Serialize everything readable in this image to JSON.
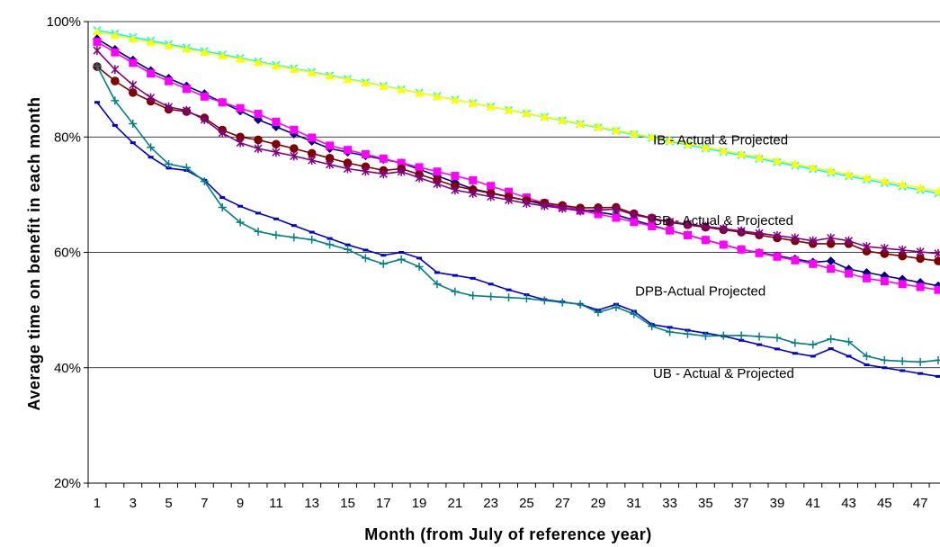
{
  "chart_data": {
    "type": "line",
    "title": "",
    "xlabel": "Month (from July of reference year)",
    "ylabel": "Average time on benefit in each month",
    "xlim": [
      1,
      48
    ],
    "ylim": [
      20,
      100
    ],
    "x_tick_labels": [
      "1",
      "3",
      "5",
      "7",
      "9",
      "11",
      "13",
      "15",
      "17",
      "19",
      "21",
      "23",
      "25",
      "27",
      "29",
      "31",
      "33",
      "35",
      "37",
      "39",
      "41",
      "43",
      "45",
      "47"
    ],
    "y_tick_labels": [
      "20%",
      "40%",
      "60%",
      "80%",
      "100%"
    ],
    "y_ticks": [
      20,
      40,
      60,
      80,
      100
    ],
    "grid": "horizontal",
    "annotations": [
      {
        "text": "IB - Actual & Projected",
        "x": 38,
        "y": 79.5
      },
      {
        "text": "SB - Actual & Projected",
        "x": 38,
        "y": 65.5
      },
      {
        "text": "DPB-Actual Projected",
        "x": 37,
        "y": 53.3
      },
      {
        "text": "UB - Actual & Projected",
        "x": 38,
        "y": 39.0
      }
    ],
    "series": [
      {
        "color": "#00ffff",
        "marker": "x",
        "start": 98.5,
        "end": 70.2,
        "knots": [],
        "bumps": []
      },
      {
        "color": "#ffff00",
        "marker": "triangle",
        "start": 98.2,
        "end": 70.6,
        "knots": [],
        "bumps": []
      },
      {
        "color": "#000080",
        "marker": "diamond",
        "start": 97.0,
        "end": 54.2,
        "knots": [
          [
            1,
            97
          ],
          [
            4,
            91.5
          ],
          [
            7,
            87.5
          ],
          [
            10,
            83
          ],
          [
            14,
            78
          ],
          [
            18,
            75.5
          ],
          [
            22,
            71
          ],
          [
            26,
            68.3
          ],
          [
            30,
            66.5
          ],
          [
            33,
            63.8
          ],
          [
            37,
            60.5
          ],
          [
            41,
            58.3
          ],
          [
            44,
            56.5
          ],
          [
            48,
            54.2
          ]
        ],
        "bumps": [
          [
            42,
            0.8
          ]
        ]
      },
      {
        "color": "#ff00ff",
        "marker": "square",
        "start": 96.5,
        "end": 53.5,
        "knots": [
          [
            1,
            96.5
          ],
          [
            4,
            91
          ],
          [
            7,
            87
          ],
          [
            10,
            84
          ],
          [
            14,
            78.5
          ],
          [
            18,
            75.5
          ],
          [
            22,
            72.5
          ],
          [
            26,
            68.5
          ],
          [
            30,
            66
          ],
          [
            33,
            63.8
          ],
          [
            37,
            60.5
          ],
          [
            41,
            58
          ],
          [
            44,
            55.5
          ],
          [
            48,
            53.5
          ]
        ],
        "bumps": []
      },
      {
        "color": "#800000",
        "marker": "circle",
        "start": 92.2,
        "end": 58.5,
        "knots": [
          [
            1,
            92.2
          ],
          [
            2,
            89.7
          ],
          [
            3,
            87.7
          ],
          [
            4,
            86.2
          ],
          [
            5,
            84.8
          ],
          [
            6,
            84.4
          ],
          [
            7,
            83.3
          ],
          [
            8,
            81.2
          ],
          [
            9,
            80
          ],
          [
            10,
            79.5
          ],
          [
            12,
            78
          ],
          [
            15,
            75.5
          ],
          [
            17,
            74.2
          ],
          [
            18,
            74.5
          ],
          [
            21,
            71.5
          ],
          [
            25,
            69
          ],
          [
            28,
            67.7
          ],
          [
            30,
            67.8
          ],
          [
            31,
            66.7
          ],
          [
            33,
            65.2
          ],
          [
            37,
            63.5
          ],
          [
            41,
            61.5
          ],
          [
            43,
            61.5
          ],
          [
            44,
            60.2
          ],
          [
            48,
            58.5
          ]
        ],
        "bumps": []
      },
      {
        "color": "#800080",
        "marker": "star",
        "start": 95.0,
        "end": 59.8,
        "knots": [
          [
            1,
            95
          ],
          [
            2,
            91.7
          ],
          [
            3,
            89
          ],
          [
            4,
            86.8
          ],
          [
            5,
            85.2
          ],
          [
            6,
            84.6
          ],
          [
            7,
            83
          ],
          [
            8,
            80.7
          ],
          [
            9,
            79
          ],
          [
            10,
            78
          ],
          [
            12,
            76.7
          ],
          [
            15,
            74.5
          ],
          [
            17,
            73.6
          ],
          [
            18,
            74
          ],
          [
            21,
            70.8
          ],
          [
            25,
            68.5
          ],
          [
            28,
            67.2
          ],
          [
            30,
            67.5
          ],
          [
            31,
            66.5
          ],
          [
            33,
            65.3
          ],
          [
            37,
            63.7
          ],
          [
            40,
            62.5
          ],
          [
            41,
            62
          ],
          [
            42,
            62.5
          ],
          [
            43,
            62
          ],
          [
            44,
            61
          ],
          [
            48,
            59.8
          ]
        ],
        "bumps": []
      },
      {
        "color": "#0000cc",
        "marker": "dash",
        "start": 86.0,
        "end": 38.5,
        "knots": [
          [
            1,
            86
          ],
          [
            2,
            82
          ],
          [
            3,
            79
          ],
          [
            4,
            76.5
          ],
          [
            5,
            74.6
          ],
          [
            6,
            74.2
          ],
          [
            7,
            72.5
          ],
          [
            8,
            69.5
          ],
          [
            9,
            68
          ],
          [
            10,
            66.8
          ],
          [
            11,
            65.8
          ],
          [
            13,
            63.5
          ],
          [
            15,
            61.3
          ],
          [
            17,
            59.5
          ],
          [
            18,
            60
          ],
          [
            19,
            59
          ],
          [
            20,
            56.5
          ],
          [
            22,
            55.5
          ],
          [
            24,
            53.5
          ],
          [
            26,
            51.8
          ],
          [
            28,
            51
          ],
          [
            29,
            50
          ],
          [
            30,
            51
          ],
          [
            31,
            49.8
          ],
          [
            32,
            47.5
          ],
          [
            34,
            46.5
          ],
          [
            36,
            45.5
          ],
          [
            38,
            44
          ],
          [
            40,
            42.5
          ],
          [
            41,
            42
          ],
          [
            42,
            43.3
          ],
          [
            43,
            42
          ],
          [
            44,
            40.5
          ],
          [
            46,
            39.5
          ],
          [
            48,
            38.5
          ]
        ],
        "bumps": []
      },
      {
        "color": "#008080",
        "marker": "plus",
        "start": 92.3,
        "end": 41.3,
        "knots": [
          [
            1,
            92.3
          ],
          [
            2,
            86.3
          ],
          [
            3,
            82.3
          ],
          [
            4,
            78.2
          ],
          [
            5,
            75.3
          ],
          [
            6,
            74.7
          ],
          [
            7,
            72.3
          ],
          [
            8,
            67.8
          ],
          [
            9,
            65.2
          ],
          [
            10,
            63.6
          ],
          [
            11,
            63
          ],
          [
            13,
            62.2
          ],
          [
            15,
            60.5
          ],
          [
            16,
            59
          ],
          [
            17,
            58
          ],
          [
            18,
            58.8
          ],
          [
            19,
            57.5
          ],
          [
            20,
            54.5
          ],
          [
            21,
            53.2
          ],
          [
            22,
            52.5
          ],
          [
            25,
            52
          ],
          [
            28,
            51
          ],
          [
            29,
            49.6
          ],
          [
            30,
            50.5
          ],
          [
            31,
            49.3
          ],
          [
            32,
            47.2
          ],
          [
            33,
            46.2
          ],
          [
            35,
            45.5
          ],
          [
            37,
            45.6
          ],
          [
            39,
            45.2
          ],
          [
            40,
            44.3
          ],
          [
            41,
            44
          ],
          [
            42,
            45
          ],
          [
            43,
            44.5
          ],
          [
            44,
            42
          ],
          [
            45,
            41.3
          ],
          [
            47,
            41
          ],
          [
            48,
            41.3
          ]
        ],
        "bumps": []
      }
    ]
  }
}
